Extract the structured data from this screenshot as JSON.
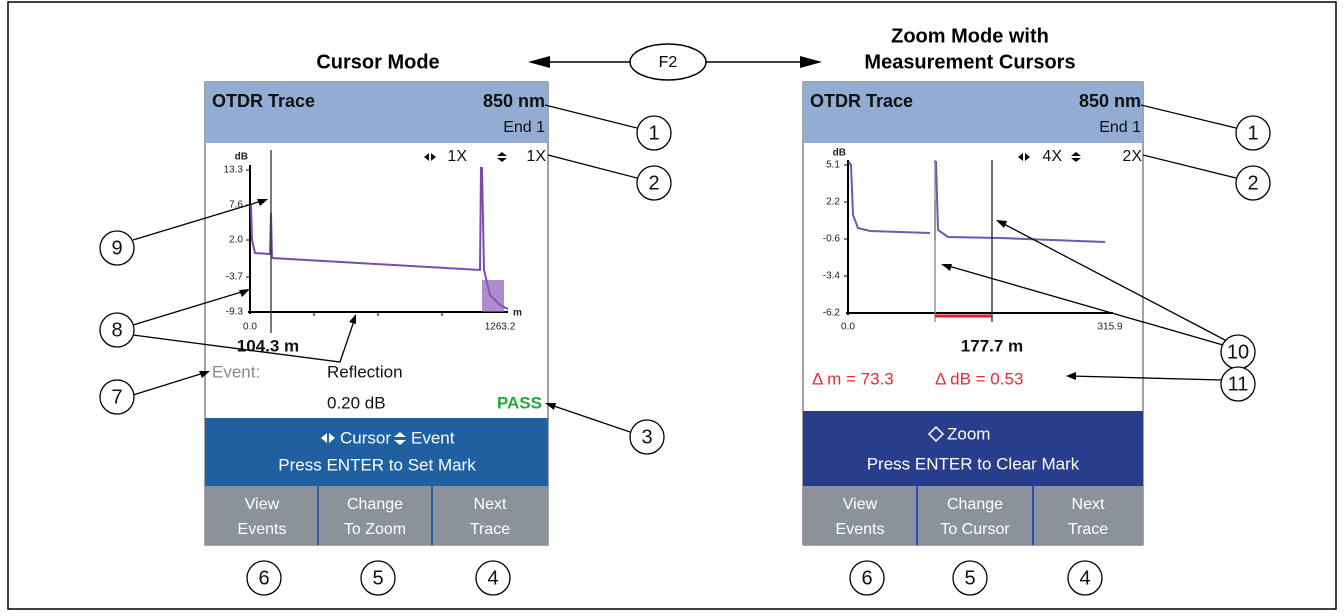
{
  "header": {
    "switch_key": "F2"
  },
  "panels": [
    {
      "mode_title": [
        "Cursor Mode"
      ],
      "screen_title": "OTDR Trace",
      "wavelength": "850 nm",
      "end": "End 1",
      "zoom_horizontal": "1X",
      "zoom_vertical": "1X",
      "y_unit": "dB",
      "x_unit": "m",
      "yticks": [
        "13.3",
        "7.6",
        "2.0",
        "-3.7",
        "-9.3"
      ],
      "xticks": [
        "0.0",
        "1263.2"
      ],
      "cursor_distance": "104.3 m",
      "event_label": "Event:",
      "event_type": "Reflection",
      "event_loss": "0.20 dB",
      "result": "PASS",
      "nav": [
        "Cursor",
        "Event"
      ],
      "instruction": "Press ENTER to Set Mark",
      "softkeys": [
        [
          "View",
          "Events"
        ],
        [
          "Change",
          "To Zoom"
        ],
        [
          "Next",
          "Trace"
        ]
      ],
      "callouts": [
        "1",
        "2",
        "9",
        "8",
        "7",
        "3",
        "6",
        "5",
        "4"
      ]
    },
    {
      "mode_title": [
        "Zoom Mode with",
        "Measurement Cursors"
      ],
      "screen_title": "OTDR Trace",
      "wavelength": "850 nm",
      "end": "End 1",
      "zoom_horizontal": "4X",
      "zoom_vertical": "2X",
      "y_unit": "dB",
      "yticks": [
        "5.1",
        "2.2",
        "-0.6",
        "-3.4",
        "-6.2"
      ],
      "xticks": [
        "0.0",
        "315.9"
      ],
      "cursor_distance": "177.7 m",
      "delta_distance": "Δ m = 73.3",
      "delta_loss": "Δ dB = 0.53",
      "nav": [
        "Zoom"
      ],
      "instruction": "Press ENTER to Clear Mark",
      "softkeys": [
        [
          "View",
          "Events"
        ],
        [
          "Change",
          "To Cursor"
        ],
        [
          "Next",
          "Trace"
        ]
      ],
      "callouts": [
        "1",
        "2",
        "10",
        "11",
        "6",
        "5",
        "4"
      ]
    }
  ]
}
